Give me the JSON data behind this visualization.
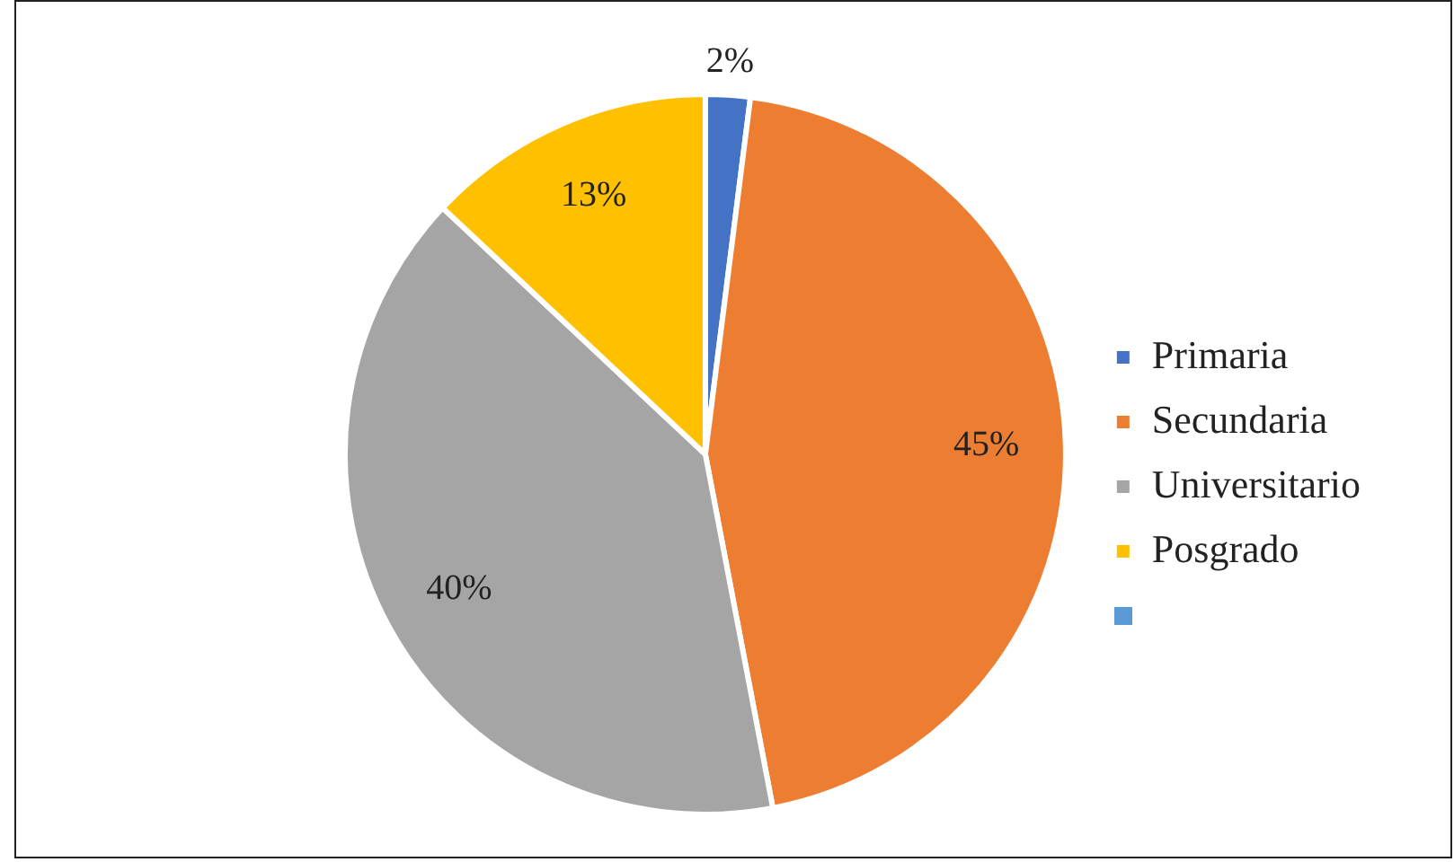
{
  "chart_data": {
    "type": "pie",
    "categories": [
      "Primaria",
      "Secundaria",
      "Universitario",
      "Posgrado"
    ],
    "values": [
      2,
      45,
      40,
      13
    ],
    "colors": [
      "#4472c4",
      "#ed7d31",
      "#a5a5a5",
      "#ffc000"
    ],
    "value_labels": [
      "2%",
      "45%",
      "40%",
      "13%"
    ],
    "legend": "right"
  }
}
